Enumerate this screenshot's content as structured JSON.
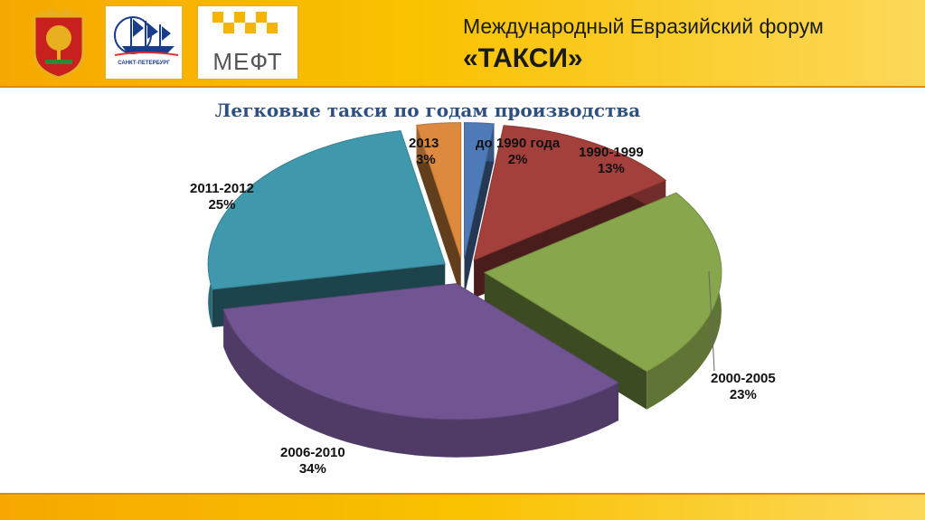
{
  "header": {
    "title": "Международный Евразийский форум",
    "subtitle": "«ТАКСИ»",
    "logos": [
      {
        "name": "coat-of-arms"
      },
      {
        "name": "spb-logo",
        "caption": "САНКТ-ПЕТЕРБУРГ"
      },
      {
        "name": "meft-logo",
        "text": "МЕФТ"
      }
    ],
    "colors": {
      "bar": "#f9c200",
      "bar_dark": "#f6a800"
    }
  },
  "chart_data": {
    "type": "pie",
    "title": "Легковые такси по годам производства",
    "slices": [
      {
        "label": "до 1990 года",
        "value": 2,
        "value_label": "2%",
        "color": "#4f7ab8"
      },
      {
        "label": "1990-1999",
        "value": 13,
        "value_label": "13%",
        "color": "#a3403c"
      },
      {
        "label": "2000-2005",
        "value": 23,
        "value_label": "23%",
        "color": "#88a64c"
      },
      {
        "label": "2006-2010",
        "value": 34,
        "value_label": "34%",
        "color": "#715592"
      },
      {
        "label": "2011-2012",
        "value": 25,
        "value_label": "25%",
        "color": "#4098ac"
      },
      {
        "label": "2013",
        "value": 3,
        "value_label": "3%",
        "color": "#dd8a3f"
      }
    ],
    "style": "3d-exploded"
  }
}
